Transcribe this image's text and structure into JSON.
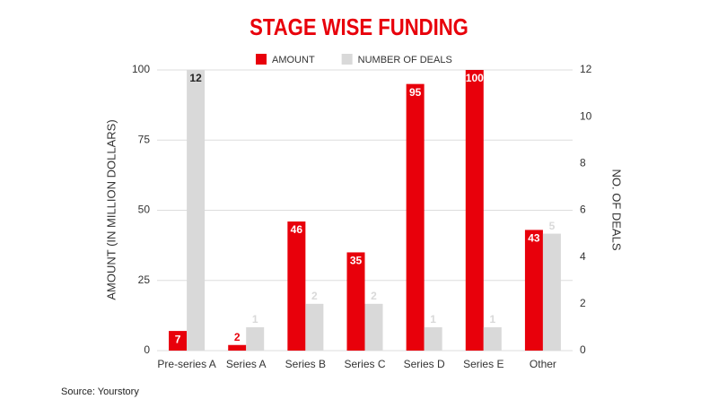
{
  "chart_data": {
    "type": "bar",
    "title": "STAGE WISE FUNDING",
    "categories": [
      "Pre-series A",
      "Series A",
      "Series B",
      "Series C",
      "Series D",
      "Series E",
      "Other"
    ],
    "series": [
      {
        "name": "AMOUNT",
        "color": "#e8000b",
        "values": [
          7,
          2,
          46,
          35,
          95,
          100,
          43
        ]
      },
      {
        "name": "NUMBER OF DEALS",
        "color": "#d9d9d9",
        "values": [
          12,
          1,
          2,
          2,
          1,
          1,
          5
        ],
        "axis": "y2"
      }
    ],
    "ylabel": "AMOUNT (IN MILLION DOLLARS)",
    "y2label": "NO. OF DEALS",
    "ylim": [
      0,
      100
    ],
    "yticks": [
      0,
      25,
      50,
      75,
      100
    ],
    "y2lim": [
      0,
      12
    ],
    "y2ticks": [
      0,
      2,
      4,
      6,
      8,
      10,
      12
    ],
    "grid": true,
    "legend": "top",
    "source": "Source: Yourstory"
  }
}
